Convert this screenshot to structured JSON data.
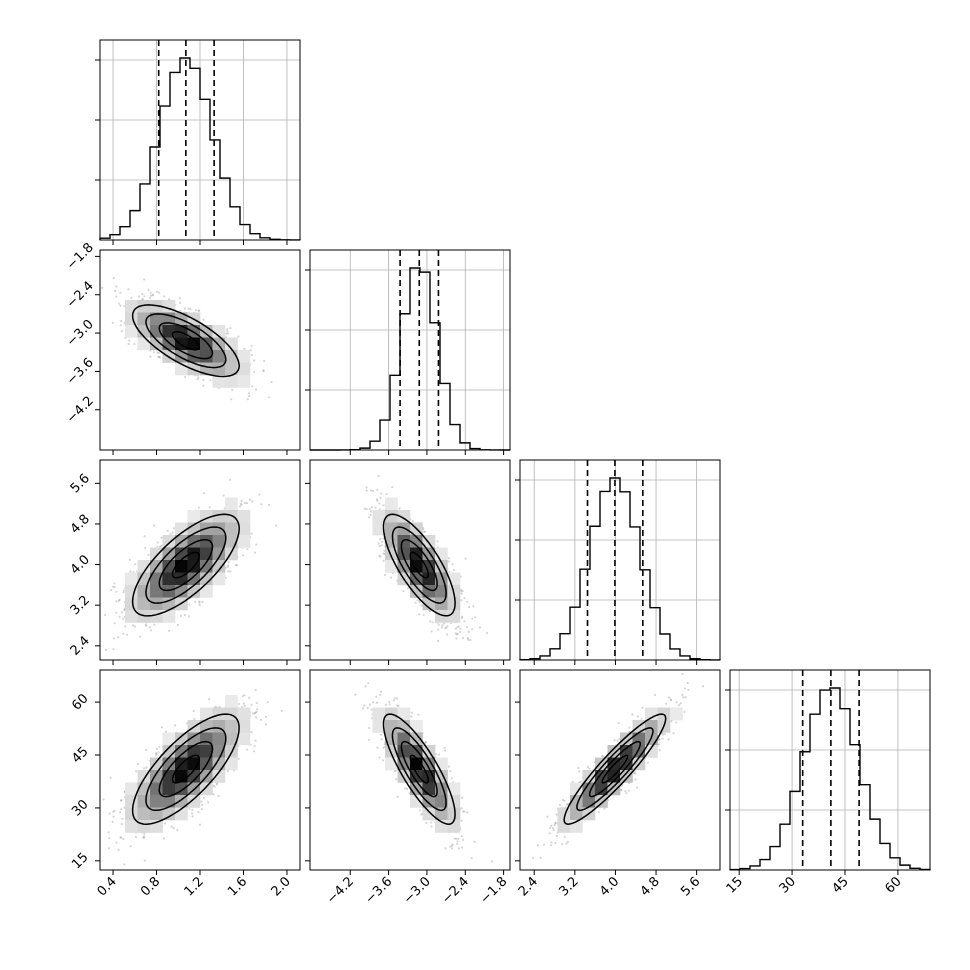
{
  "chart_data": {
    "type": "corner",
    "parameters": [
      {
        "ticks": [
          0.4,
          0.8,
          1.2,
          1.6,
          2.0
        ],
        "labels": [
          "0.4",
          "0.8",
          "1.2",
          "1.6",
          "2.0"
        ],
        "range": [
          0.28,
          2.12
        ],
        "mean": 1.07,
        "sd": 0.245,
        "quantiles": [
          0.82,
          1.07,
          1.33
        ]
      },
      {
        "ticks": [
          -4.2,
          -3.6,
          -3.0,
          -2.4,
          -1.8
        ],
        "labels": [
          "−4.2",
          "−3.6",
          "−3.0",
          "−2.4",
          "−1.8"
        ],
        "range": [
          -4.83,
          -1.7
        ],
        "mean": -3.12,
        "sd": 0.28,
        "quantiles": [
          -3.42,
          -3.12,
          -2.82
        ]
      },
      {
        "ticks": [
          2.4,
          3.2,
          4.0,
          4.8,
          5.6
        ],
        "labels": [
          "2.4",
          "3.2",
          "4.0",
          "4.8",
          "5.6"
        ],
        "range": [
          2.12,
          6.06
        ],
        "mean": 3.99,
        "sd": 0.5,
        "quantiles": [
          3.45,
          3.99,
          4.54
        ]
      },
      {
        "ticks": [
          15,
          30,
          45,
          60
        ],
        "labels": [
          "15",
          "30",
          "45",
          "60"
        ],
        "range": [
          12.4,
          69.1
        ],
        "mean": 41.0,
        "sd": 7.8,
        "quantiles": [
          33,
          41,
          49
        ]
      }
    ],
    "correlations": [
      [
        1,
        -0.7,
        0.72,
        0.75
      ],
      [
        -0.7,
        1,
        -0.75,
        -0.82
      ],
      [
        0.72,
        -0.75,
        1,
        0.92
      ],
      [
        0.75,
        -0.82,
        0.92,
        1
      ]
    ],
    "histogram_shape": "gaussian",
    "quantile_style": "dashed",
    "contour_levels": [
      0.118,
      0.393,
      0.675,
      0.865
    ],
    "grid": true,
    "colors": {
      "line": "#000000",
      "grid": "#b0b0b0",
      "points": "#888888"
    }
  }
}
